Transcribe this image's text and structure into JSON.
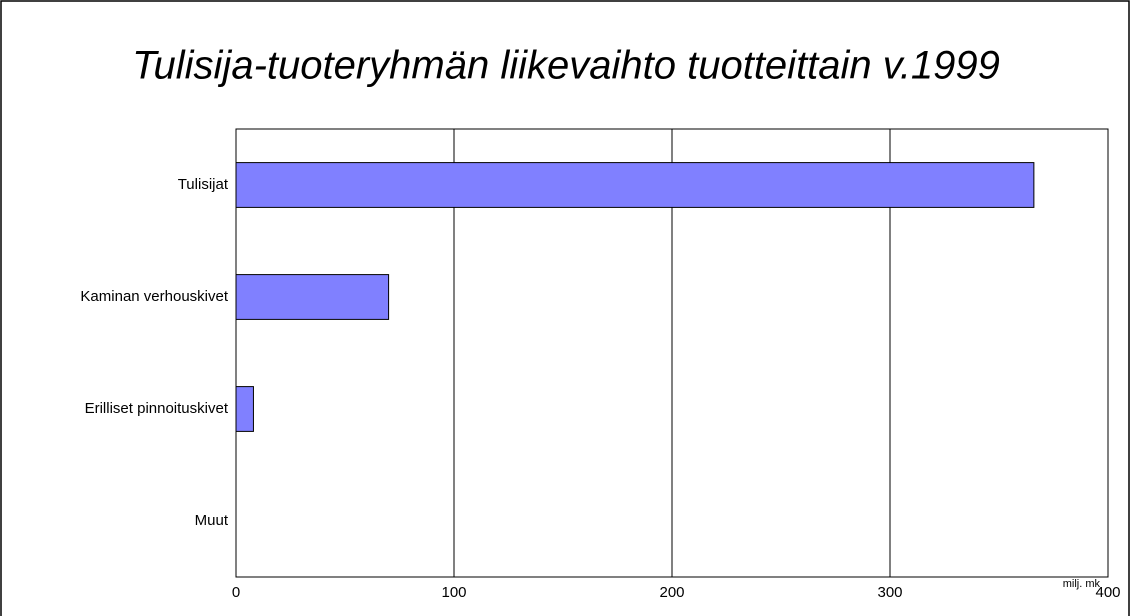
{
  "chart_data": {
    "type": "bar",
    "orientation": "horizontal",
    "title": "Tulisija-tuoteryhmän liikevaihto tuotteittain v.1999",
    "x_label": "milj. mk",
    "categories": [
      "Tulisijat",
      "Kaminan verhouskivet",
      "Erilliset pinnoituskivet",
      "Muut"
    ],
    "values": [
      366,
      70,
      8,
      0
    ],
    "color": "#8080ff",
    "xlim": [
      0,
      400
    ],
    "xticks": [
      0,
      100,
      200,
      300,
      400
    ],
    "grid": true
  }
}
